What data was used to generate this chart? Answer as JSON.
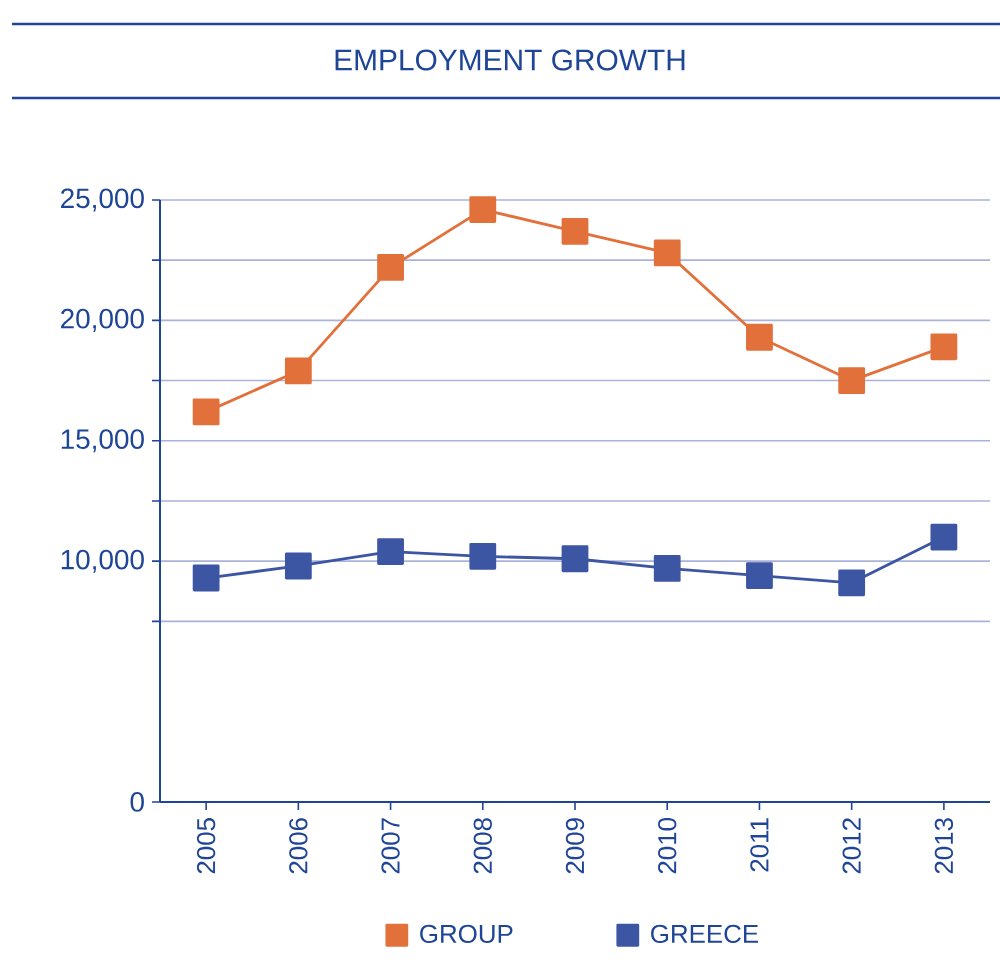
{
  "chart_data": {
    "type": "line",
    "title": "EMPLOYMENT GROWTH",
    "categories": [
      "2005",
      "2006",
      "2007",
      "2008",
      "2009",
      "2010",
      "2011",
      "2012",
      "2013"
    ],
    "series": [
      {
        "name": "GROUP",
        "color": "#e2703a",
        "values": [
          16200,
          17900,
          22200,
          24600,
          23700,
          22800,
          19300,
          17500,
          18900
        ]
      },
      {
        "name": "GREECE",
        "color": "#3d56a3",
        "values": [
          9300,
          9800,
          10400,
          10200,
          10100,
          9700,
          9400,
          9100,
          11000
        ]
      }
    ],
    "ylim": [
      0,
      25000
    ],
    "yticks": [
      {
        "value": 0,
        "label": "0"
      },
      {
        "value": 7500,
        "label": null
      },
      {
        "value": 10000,
        "label": "10,000"
      },
      {
        "value": 12500,
        "label": null
      },
      {
        "value": 15000,
        "label": "15,000"
      },
      {
        "value": 17500,
        "label": null
      },
      {
        "value": 20000,
        "label": "20,000"
      },
      {
        "value": 22500,
        "label": null
      },
      {
        "value": 25000,
        "label": "25,000"
      }
    ],
    "grid": "y",
    "legend": "bottom",
    "marker": "square",
    "line_style": "solid"
  }
}
